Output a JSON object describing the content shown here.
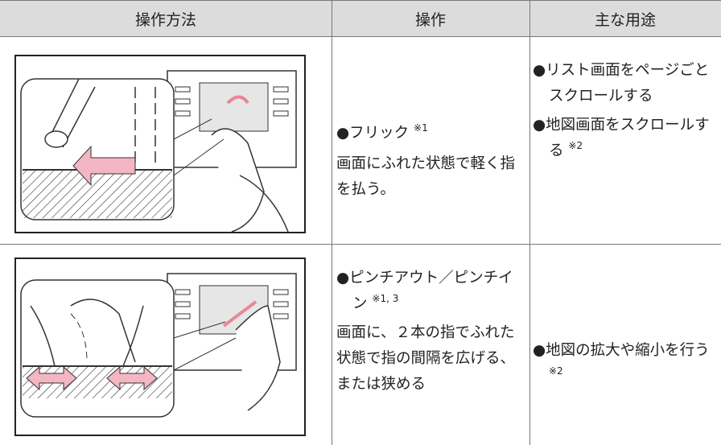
{
  "table": {
    "headers": [
      "操作方法",
      "操作",
      "主な用途"
    ],
    "rows": [
      {
        "operation": {
          "name": "●フリック",
          "note": "※1"
        },
        "description": "画面にふれた状態で軽く指を払う。",
        "uses": [
          {
            "text": "●リスト画面をページごとスクロールする",
            "note": null
          },
          {
            "text": "●地図画面をスクロールする",
            "note": "※2"
          }
        ]
      },
      {
        "operation": {
          "name": "●ピンチアウト／ピンチイン",
          "note": "※1, 3"
        },
        "description": "画面に、２本の指でふれた状態で指の間隔を広げる、または狭める",
        "uses": [
          {
            "text": "●地図の拡大や縮小を行う",
            "note": "※2"
          }
        ]
      }
    ]
  }
}
